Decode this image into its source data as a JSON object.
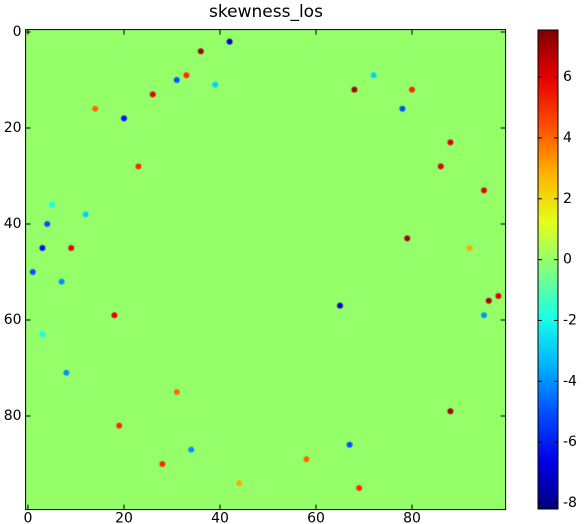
{
  "chart_data": {
    "type": "heatmap",
    "title": "skewness_los",
    "xlim": [
      -0.5,
      99.5
    ],
    "ylim": [
      99.5,
      -0.5
    ],
    "xticks": [
      0,
      20,
      40,
      60,
      80
    ],
    "yticks": [
      0,
      20,
      40,
      60,
      80
    ],
    "background": 0,
    "points": [
      [
        42,
        2,
        -7
      ],
      [
        36,
        4,
        7
      ],
      [
        31,
        10,
        -5
      ],
      [
        33,
        9,
        5
      ],
      [
        26,
        13,
        6
      ],
      [
        39,
        11,
        -3
      ],
      [
        20,
        18,
        -6
      ],
      [
        14,
        16,
        4
      ],
      [
        23,
        28,
        5
      ],
      [
        72,
        9,
        -3
      ],
      [
        78,
        16,
        -5
      ],
      [
        80,
        12,
        5
      ],
      [
        68,
        12,
        7
      ],
      [
        88,
        23,
        6
      ],
      [
        86,
        28,
        6
      ],
      [
        95,
        33,
        6
      ],
      [
        4,
        40,
        -5
      ],
      [
        3,
        45,
        -6
      ],
      [
        9,
        45,
        6
      ],
      [
        1,
        50,
        -5
      ],
      [
        7,
        52,
        -4
      ],
      [
        79,
        43,
        7
      ],
      [
        92,
        45,
        3
      ],
      [
        98,
        55,
        6
      ],
      [
        96,
        56,
        7
      ],
      [
        95,
        59,
        -4
      ],
      [
        65,
        57,
        -7
      ],
      [
        18,
        59,
        6
      ],
      [
        3,
        63,
        -2
      ],
      [
        8,
        71,
        -4
      ],
      [
        31,
        75,
        4
      ],
      [
        19,
        82,
        5
      ],
      [
        34,
        87,
        -4
      ],
      [
        28,
        90,
        5
      ],
      [
        88,
        79,
        7
      ],
      [
        67,
        86,
        -5
      ],
      [
        44,
        94,
        3
      ],
      [
        58,
        89,
        4
      ],
      [
        69,
        95,
        5
      ],
      [
        5,
        36,
        -2
      ],
      [
        12,
        38,
        -3
      ]
    ],
    "clim": [
      -8.2,
      7.55
    ],
    "cticks": [
      -8,
      -6,
      -4,
      -2,
      0,
      2,
      4,
      6
    ],
    "colormap": "jet"
  }
}
